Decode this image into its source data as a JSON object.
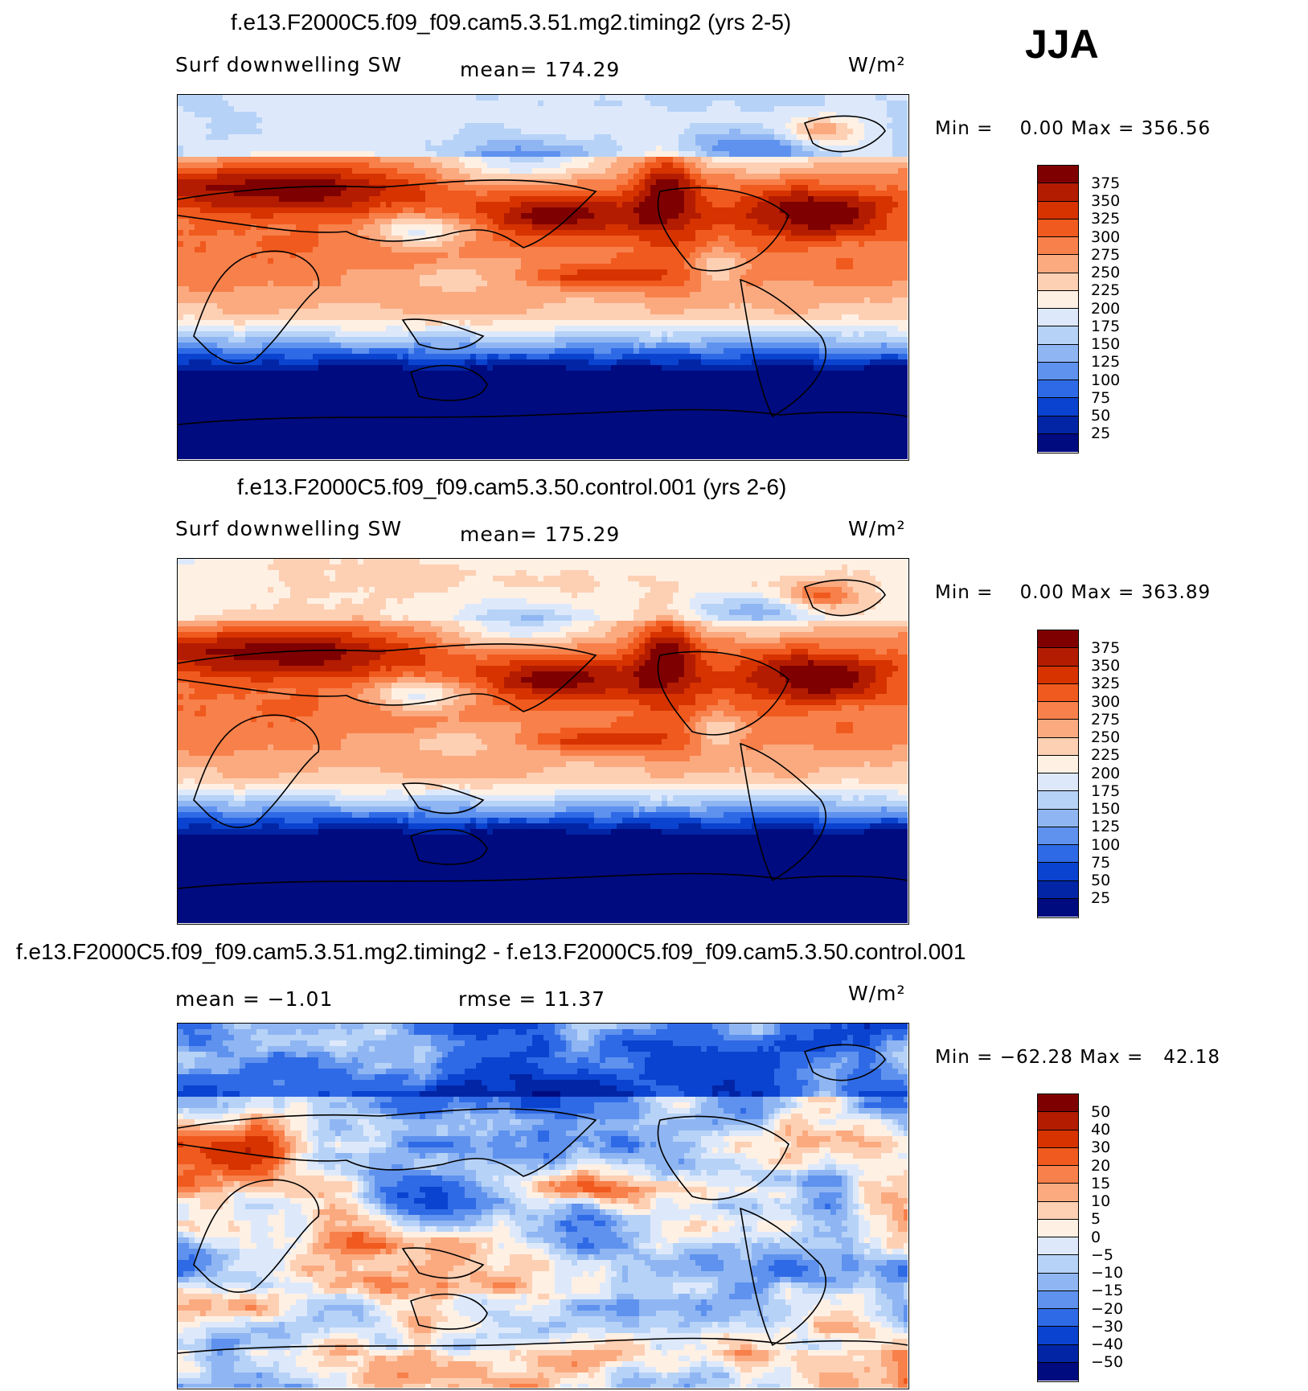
{
  "season": "JJA",
  "chart_data": [
    {
      "type": "heatmap",
      "title": "f.e13.F2000C5.f09_f09.cam5.3.51.mg2.timing2 (yrs 2-5)",
      "variable": "Surf downwelling SW",
      "stat_text": "mean= 174.29",
      "units": "W/m²",
      "minmax_text": "Min =    0.00 Max = 356.56",
      "min": 0.0,
      "max": 356.56,
      "mean": 174.29,
      "levels": [
        "375",
        "350",
        "325",
        "300",
        "275",
        "250",
        "225",
        "200",
        "175",
        "150",
        "125",
        "100",
        "75",
        "50",
        "25"
      ],
      "colors": [
        "#7f0000",
        "#b31c00",
        "#d63300",
        "#f05a1e",
        "#f8804a",
        "#fbaa80",
        "#fdd0b4",
        "#fff0e4",
        "#dde9fb",
        "#b7d2f7",
        "#8fb6f3",
        "#5f92ee",
        "#2f6ae6",
        "#0a43cf",
        "#0225a5",
        "#000b80"
      ]
    },
    {
      "type": "heatmap",
      "title": "f.e13.F2000C5.f09_f09.cam5.3.50.control.001 (yrs 2-6)",
      "variable": "Surf downwelling SW",
      "stat_text": "mean= 175.29",
      "units": "W/m²",
      "minmax_text": "Min =    0.00 Max = 363.89",
      "min": 0.0,
      "max": 363.89,
      "mean": 175.29,
      "levels": [
        "375",
        "350",
        "325",
        "300",
        "275",
        "250",
        "225",
        "200",
        "175",
        "150",
        "125",
        "100",
        "75",
        "50",
        "25"
      ],
      "colors": [
        "#7f0000",
        "#b31c00",
        "#d63300",
        "#f05a1e",
        "#f8804a",
        "#fbaa80",
        "#fdd0b4",
        "#fff0e4",
        "#dde9fb",
        "#b7d2f7",
        "#8fb6f3",
        "#5f92ee",
        "#2f6ae6",
        "#0a43cf",
        "#0225a5",
        "#000b80"
      ]
    },
    {
      "type": "heatmap",
      "title": "f.e13.F2000C5.f09_f09.cam5.3.51.mg2.timing2 - f.e13.F2000C5.f09_f09.cam5.3.50.control.001",
      "stat_text": "mean =   −1.01",
      "stat2_text": "rmse =   11.37",
      "units": "W/m²",
      "minmax_text": "Min = −62.28 Max =   42.18",
      "min": -62.28,
      "max": 42.18,
      "mean": -1.01,
      "rmse": 11.37,
      "levels": [
        "50",
        "40",
        "30",
        "20",
        "15",
        "10",
        "5",
        "0",
        "−5",
        "−10",
        "−15",
        "−20",
        "−30",
        "−40",
        "−50"
      ],
      "colors": [
        "#7f0000",
        "#b31c00",
        "#d63300",
        "#f05a1e",
        "#f8804a",
        "#fbaa80",
        "#fdd0b4",
        "#fff0e4",
        "#dde9fb",
        "#b7d2f7",
        "#8fb6f3",
        "#5f92ee",
        "#2f6ae6",
        "#0a43cf",
        "#0225a5",
        "#000b80"
      ]
    }
  ]
}
